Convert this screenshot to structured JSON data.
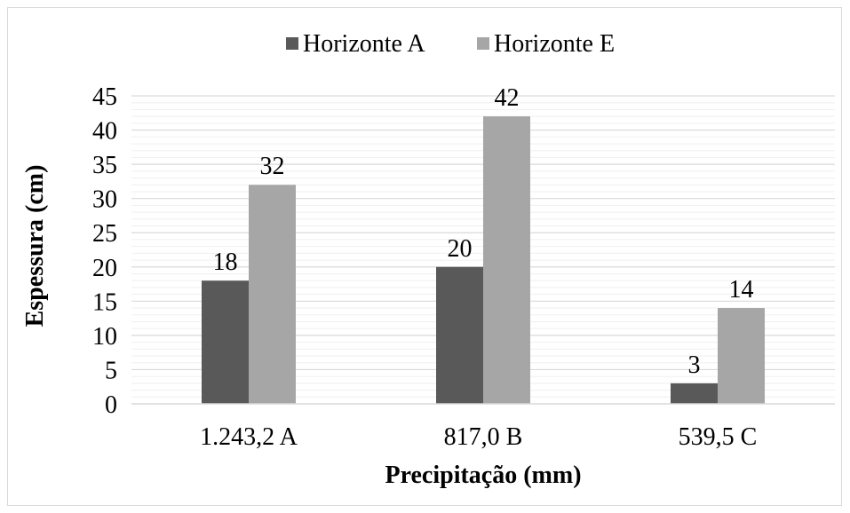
{
  "chart_data": {
    "type": "bar",
    "title": "",
    "xlabel": "Precipitação (mm)",
    "ylabel": "Espessura (cm)",
    "categories": [
      "1.243,2  A",
      "817,0 B",
      "539,5 C"
    ],
    "series": [
      {
        "name": "Horizonte A",
        "values": [
          18,
          20,
          3
        ],
        "color": "#595959"
      },
      {
        "name": "Horizonte E",
        "values": [
          32,
          42,
          14
        ],
        "color": "#a6a6a6"
      }
    ],
    "ylim": [
      0,
      45
    ],
    "yticks": [
      "0",
      "5",
      "10",
      "15",
      "20",
      "25",
      "30",
      "35",
      "40",
      "45"
    ],
    "grid": true,
    "legend_position": "top"
  }
}
